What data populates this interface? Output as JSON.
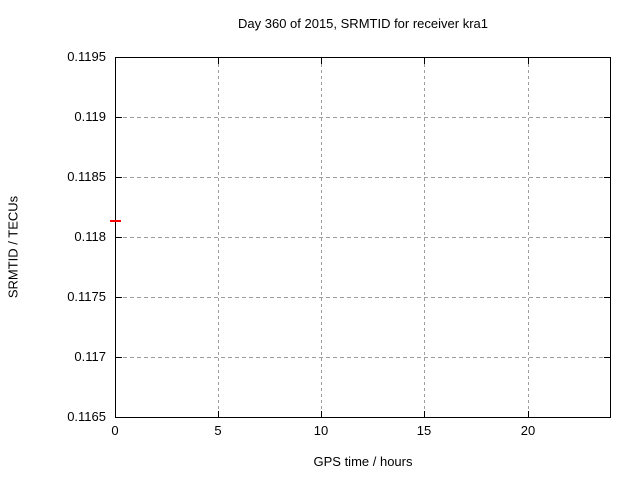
{
  "window": {
    "background": "#ffffff",
    "text_color": "#000000"
  },
  "chart_data": {
    "type": "scatter",
    "title": "Day 360 of 2015, SRMTID for receiver kra1",
    "xlabel": "GPS time / hours",
    "ylabel": "SRMTID / TECUs",
    "xlim": [
      0,
      24
    ],
    "ylim": [
      0.1165,
      0.1195
    ],
    "xticks": [
      {
        "value": 0,
        "label": "0"
      },
      {
        "value": 5,
        "label": "5"
      },
      {
        "value": 10,
        "label": "10"
      },
      {
        "value": 15,
        "label": "15"
      },
      {
        "value": 20,
        "label": "20"
      }
    ],
    "yticks": [
      {
        "value": 0.1165,
        "label": "0.1165"
      },
      {
        "value": 0.117,
        "label": "0.117"
      },
      {
        "value": 0.1175,
        "label": "0.1175"
      },
      {
        "value": 0.118,
        "label": "0.118"
      },
      {
        "value": 0.1185,
        "label": "0.1185"
      },
      {
        "value": 0.119,
        "label": "0.119"
      },
      {
        "value": 0.1195,
        "label": "0.1195"
      }
    ],
    "grid": true,
    "grid_style": "dashed",
    "grid_color": "#9e9e9e",
    "axis_color": "#000000",
    "legend_position": "none",
    "series": [
      {
        "name": "srmtid",
        "color": "#ff0000",
        "marker": "horizontal-dash",
        "points": [
          {
            "x": 0.0,
            "y": 0.11813
          }
        ]
      }
    ]
  }
}
